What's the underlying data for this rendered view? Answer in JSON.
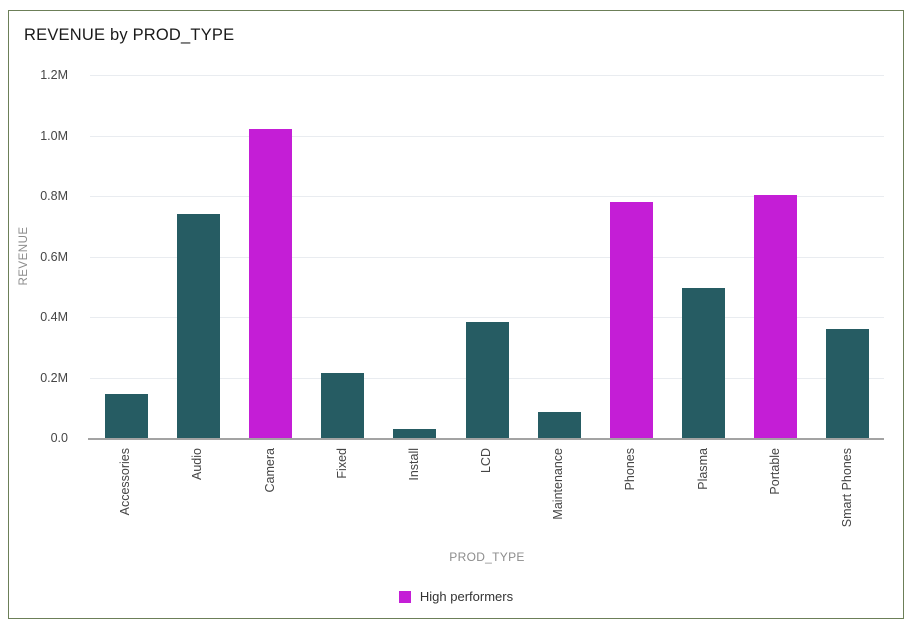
{
  "window": {
    "border_color": "#6c7f58",
    "background": "#ffffff"
  },
  "chart_data": {
    "type": "bar",
    "title": "REVENUE by PROD_TYPE",
    "xlabel": "PROD_TYPE",
    "ylabel": "REVENUE",
    "unit": "M",
    "ylim": [
      0,
      1.2
    ],
    "grid": true,
    "yticks": [
      {
        "value": 0.0,
        "label": "0.0"
      },
      {
        "value": 0.2,
        "label": "0.2M"
      },
      {
        "value": 0.4,
        "label": "0.4M"
      },
      {
        "value": 0.6,
        "label": "0.6M"
      },
      {
        "value": 0.8,
        "label": "0.8M"
      },
      {
        "value": 1.0,
        "label": "1.0M"
      },
      {
        "value": 1.2,
        "label": "1.2M"
      }
    ],
    "categories": [
      "Accessories",
      "Audio",
      "Camera",
      "Fixed",
      "Install",
      "LCD",
      "Maintenance",
      "Phones",
      "Plasma",
      "Portable",
      "Smart Phones"
    ],
    "values": [
      0.145,
      0.74,
      1.02,
      0.215,
      0.03,
      0.385,
      0.085,
      0.78,
      0.495,
      0.805,
      0.36
    ],
    "highlight_categories": [
      "Camera",
      "Phones",
      "Portable"
    ],
    "colors": {
      "default": "#265c63",
      "highlight": "#c41ed6",
      "gridline": "#e9ecf0",
      "axis_line": "#a3a3a3"
    },
    "legend": {
      "position": "bottom",
      "items": [
        {
          "label": "High performers",
          "color": "#c41ed6"
        }
      ]
    }
  }
}
